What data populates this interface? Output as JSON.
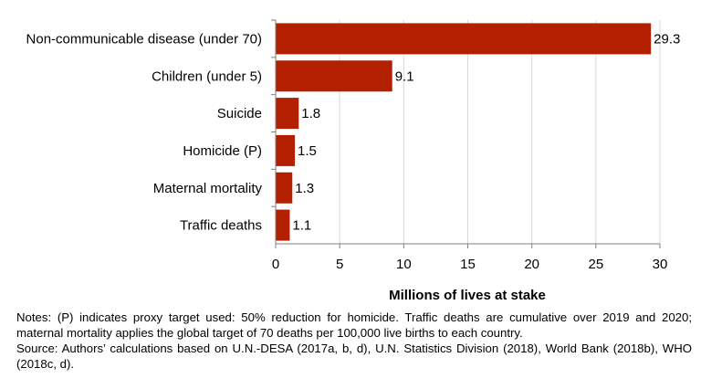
{
  "chart_data": {
    "type": "bar",
    "orientation": "horizontal",
    "categories": [
      "Non-communicable disease (under 70)",
      "Children (under 5)",
      "Suicide",
      "Homicide (P)",
      "Maternal mortality",
      "Traffic deaths"
    ],
    "values": [
      29.3,
      9.1,
      1.8,
      1.5,
      1.3,
      1.1
    ],
    "data_labels": [
      "29.3",
      "9.1",
      "1.8",
      "1.5",
      "1.3",
      "1.1"
    ],
    "xlabel": "Millions of lives at stake",
    "ylabel": "",
    "xlim": [
      0,
      30
    ],
    "xticks": [
      0,
      5,
      10,
      15,
      20,
      25,
      30
    ],
    "grid": "vertical",
    "bar_color": "#b22000"
  },
  "notes": {
    "line1": "Notes: (P) indicates proxy target used: 50% reduction for homicide. Traffic deaths are cumulative over 2019 and 2020; maternal mortality applies the global target of 70 deaths per 100,000 live births to each country.",
    "line2": "Source: Authors’ calculations based on U.N.-DESA (2017a, b, d), U.N. Statistics Division (2018), World Bank (2018b), WHO (2018c, d)."
  }
}
